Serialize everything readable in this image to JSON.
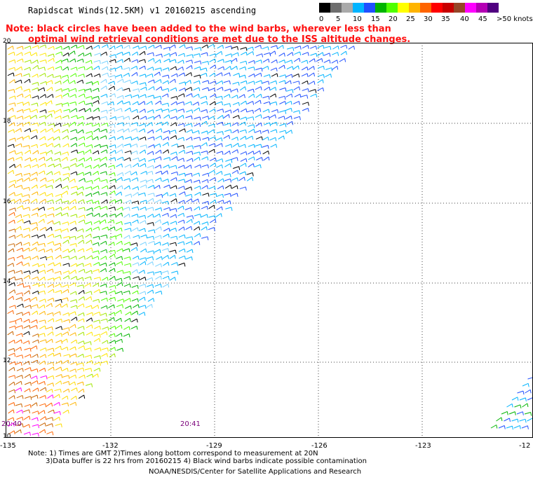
{
  "header": {
    "title": "Rapidscat Winds(12.5KM) v1 20160215 ascending",
    "note_line1": "Note: black circles have been added to the wind barbs, wherever less than",
    "note_line2": "optimal wind retrieval conditions are met due to the ISS altitude changes."
  },
  "legend": {
    "ticks": [
      "0",
      "5",
      "10",
      "15",
      "20",
      "25",
      "30",
      "35",
      "40",
      "45",
      ">50 knots"
    ],
    "colors": [
      "#000000",
      "#6e6e6e",
      "#aaaaaa",
      "#00b4ff",
      "#2050ff",
      "#00b400",
      "#50ff00",
      "#ffff00",
      "#ffb400",
      "#ff6400",
      "#ff0000",
      "#c80000",
      "#964628",
      "#ff00ff",
      "#b400b4",
      "#500080"
    ]
  },
  "map": {
    "lat_labels": [
      "20",
      "18",
      "16",
      "14",
      "12",
      "10"
    ],
    "lon_labels": [
      "-135",
      "-132",
      "-129",
      "-126",
      "-123",
      "-12"
    ],
    "time_labels": [
      "20:40",
      "20:41"
    ]
  },
  "footer": {
    "note_line1": "Note: 1) Times are GMT 2)Times along bottom correspond to measurement at 20N",
    "note_line2": "3)Data buffer is 22 hrs from 20160215 4) Black wind barbs indicate possible contamination",
    "credit": "NOAA/NESDIS/Center for Satellite Applications and Research"
  }
}
